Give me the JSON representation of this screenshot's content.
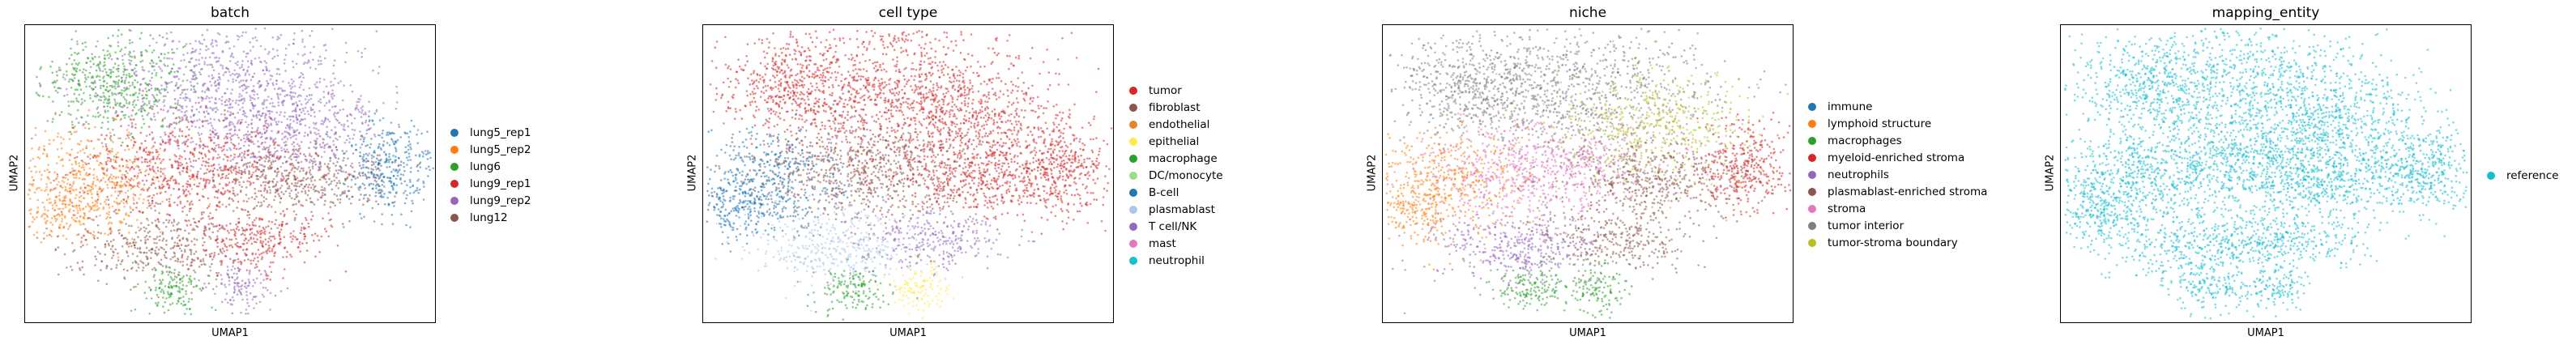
{
  "chart_data": [
    {
      "type": "scatter",
      "title": "batch",
      "xlabel": "UMAP1",
      "ylabel": "UMAP2",
      "grid": false,
      "legend_position": "right",
      "series": [
        {
          "name": "lung5_rep1",
          "color": "#1f77b4"
        },
        {
          "name": "lung5_rep2",
          "color": "#ff7f0e"
        },
        {
          "name": "lung6",
          "color": "#2ca02c"
        },
        {
          "name": "lung9_rep1",
          "color": "#d62728"
        },
        {
          "name": "lung9_rep2",
          "color": "#9467bd"
        },
        {
          "name": "lung12",
          "color": "#8c564b"
        }
      ]
    },
    {
      "type": "scatter",
      "title": "cell type",
      "xlabel": "UMAP1",
      "ylabel": "UMAP2",
      "grid": false,
      "legend_position": "right",
      "series": [
        {
          "name": "tumor",
          "color": "#d62728"
        },
        {
          "name": "fibroblast",
          "color": "#8c564b"
        },
        {
          "name": "endothelial",
          "color": "#e6862a"
        },
        {
          "name": "epithelial",
          "color": "#ffe94a"
        },
        {
          "name": "macrophage",
          "color": "#2ca02c"
        },
        {
          "name": "DC/monocyte",
          "color": "#98df8a"
        },
        {
          "name": "B-cell",
          "color": "#1f77b4"
        },
        {
          "name": "plasmablast",
          "color": "#aec7e8"
        },
        {
          "name": "T cell/NK",
          "color": "#9467bd"
        },
        {
          "name": "mast",
          "color": "#e377c2"
        },
        {
          "name": "neutrophil",
          "color": "#17becf"
        }
      ]
    },
    {
      "type": "scatter",
      "title": "niche",
      "xlabel": "UMAP1",
      "ylabel": "UMAP2",
      "grid": false,
      "legend_position": "right",
      "series": [
        {
          "name": "immune",
          "color": "#1f77b4"
        },
        {
          "name": "lymphoid structure",
          "color": "#ff7f0e"
        },
        {
          "name": "macrophages",
          "color": "#2ca02c"
        },
        {
          "name": "myeloid-enriched stroma",
          "color": "#d62728"
        },
        {
          "name": "neutrophils",
          "color": "#9467bd"
        },
        {
          "name": "plasmablast-enriched stroma",
          "color": "#8c564b"
        },
        {
          "name": "stroma",
          "color": "#e377c2"
        },
        {
          "name": "tumor interior",
          "color": "#7f7f7f"
        },
        {
          "name": "tumor-stroma boundary",
          "color": "#bcbd22"
        }
      ]
    },
    {
      "type": "scatter",
      "title": "mapping_entity",
      "xlabel": "UMAP1",
      "ylabel": "UMAP2",
      "grid": false,
      "legend_position": "right",
      "series": [
        {
          "name": "reference",
          "color": "#17becf"
        }
      ]
    }
  ]
}
